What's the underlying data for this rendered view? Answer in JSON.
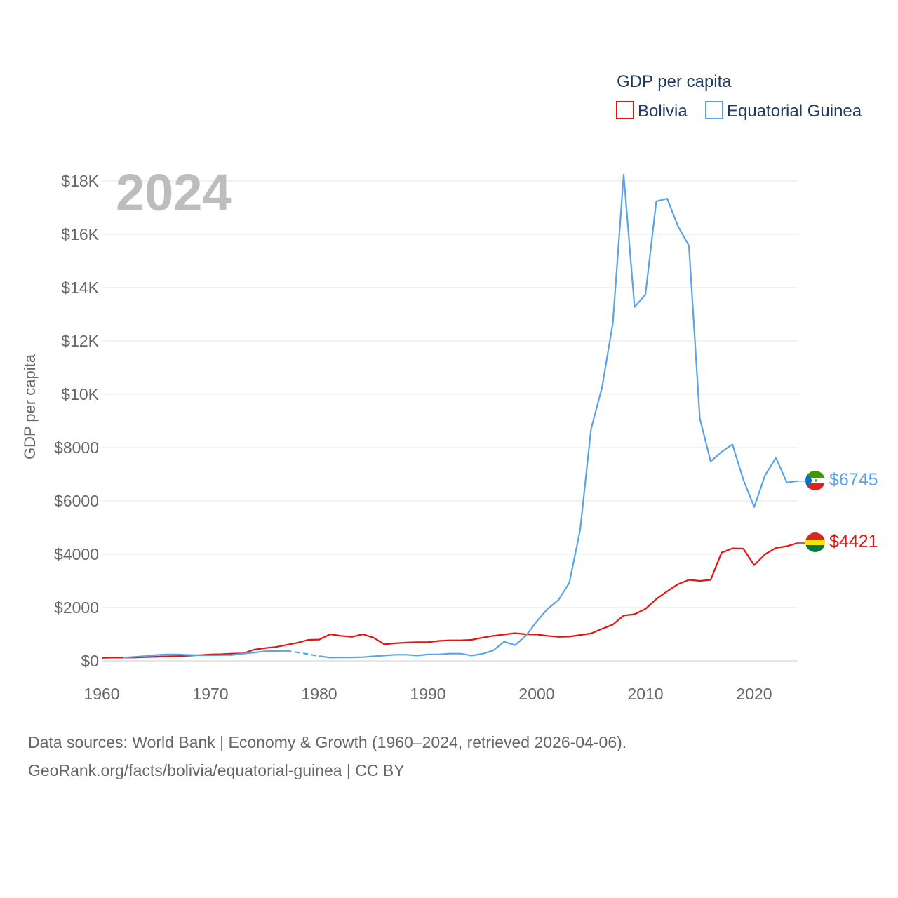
{
  "chart_data": {
    "type": "line",
    "title": "GDP per capita",
    "year_label": "2024",
    "ylabel": "GDP per capita",
    "xlabel": "",
    "xlim": [
      1960,
      2024
    ],
    "ylim": [
      0,
      18000
    ],
    "x_ticks": [
      1960,
      1970,
      1980,
      1990,
      2000,
      2010,
      2020
    ],
    "x_tick_labels": [
      "1960",
      "1970",
      "1980",
      "1990",
      "2000",
      "2010",
      "2020"
    ],
    "y_ticks": [
      0,
      2000,
      4000,
      6000,
      8000,
      10000,
      12000,
      14000,
      16000,
      18000
    ],
    "y_tick_labels": [
      "$0",
      "$2000",
      "$4000",
      "$6000",
      "$8000",
      "$10K",
      "$12K",
      "$14K",
      "$16K",
      "$18K"
    ],
    "legend_position": "top-right",
    "series": [
      {
        "name": "Bolivia",
        "color": "#e8130f",
        "end_label": "$4421",
        "x": [
          1960,
          1961,
          1962,
          1963,
          1964,
          1965,
          1966,
          1967,
          1968,
          1969,
          1970,
          1971,
          1972,
          1973,
          1974,
          1975,
          1976,
          1977,
          1978,
          1979,
          1980,
          1981,
          1982,
          1983,
          1984,
          1985,
          1986,
          1987,
          1988,
          1989,
          1990,
          1991,
          1992,
          1993,
          1994,
          1995,
          1996,
          1997,
          1998,
          1999,
          2000,
          2001,
          2002,
          2003,
          2004,
          2005,
          2006,
          2007,
          2008,
          2009,
          2010,
          2011,
          2012,
          2013,
          2014,
          2015,
          2016,
          2017,
          2018,
          2019,
          2020,
          2021,
          2022,
          2023,
          2024
        ],
        "values": [
          110,
          120,
          120,
          125,
          140,
          155,
          170,
          180,
          195,
          215,
          240,
          250,
          270,
          280,
          420,
          480,
          520,
          600,
          680,
          790,
          800,
          1000,
          940,
          900,
          1000,
          870,
          620,
          660,
          690,
          700,
          700,
          750,
          770,
          770,
          790,
          870,
          940,
          990,
          1040,
          1000,
          990,
          940,
          900,
          910,
          970,
          1030,
          1200,
          1360,
          1700,
          1750,
          1950,
          2320,
          2610,
          2880,
          3040,
          3000,
          3040,
          4060,
          4220,
          4210,
          3590,
          4000,
          4240,
          4300,
          4421
        ]
      },
      {
        "name": "Equatorial Guinea",
        "color": "#5aa3e8",
        "end_label": "$6745",
        "x": [
          1962,
          1963,
          1964,
          1965,
          1966,
          1967,
          1968,
          1969,
          1970,
          1971,
          1972,
          1973,
          1974,
          1975,
          1976,
          1977,
          1978,
          1979,
          1980,
          1981,
          1982,
          1983,
          1984,
          1985,
          1986,
          1987,
          1988,
          1989,
          1990,
          1991,
          1992,
          1993,
          1994,
          1995,
          1996,
          1997,
          1998,
          1999,
          2000,
          2001,
          2002,
          2003,
          2004,
          2005,
          2006,
          2007,
          2008,
          2009,
          2010,
          2011,
          2012,
          2013,
          2014,
          2015,
          2016,
          2017,
          2018,
          2019,
          2020,
          2021,
          2022,
          2023,
          2024
        ],
        "values": [
          120,
          150,
          180,
          220,
          240,
          240,
          220,
          210,
          210,
          215,
          220,
          270,
          310,
          360,
          370,
          380,
          320,
          250,
          180,
          120,
          130,
          130,
          140,
          170,
          200,
          230,
          230,
          200,
          240,
          240,
          270,
          270,
          200,
          260,
          390,
          720,
          590,
          940,
          1480,
          1950,
          2280,
          2930,
          4920,
          8700,
          10240,
          12660,
          18240,
          13270,
          13740,
          17240,
          17340,
          16300,
          15570,
          9100,
          7480,
          7840,
          8120,
          6800,
          5770,
          6960,
          7620,
          6690,
          6745
        ],
        "dashed_x_range": [
          1977,
          1980
        ]
      }
    ]
  },
  "legend": {
    "title": "GDP per capita",
    "items": [
      {
        "label": "Bolivia",
        "color": "#e8130f"
      },
      {
        "label": "Equatorial Guinea",
        "color": "#5aa3e8"
      }
    ]
  },
  "footer": {
    "line1": "Data sources: World Bank | Economy & Growth (1960–2024, retrieved 2026-04-06).",
    "line2": "GeoRank.org/facts/bolivia/equatorial-guinea | CC BY"
  },
  "flags": {
    "bolivia": "bolivia-flag-icon",
    "equatorial_guinea": "equatorial-guinea-flag-icon"
  }
}
